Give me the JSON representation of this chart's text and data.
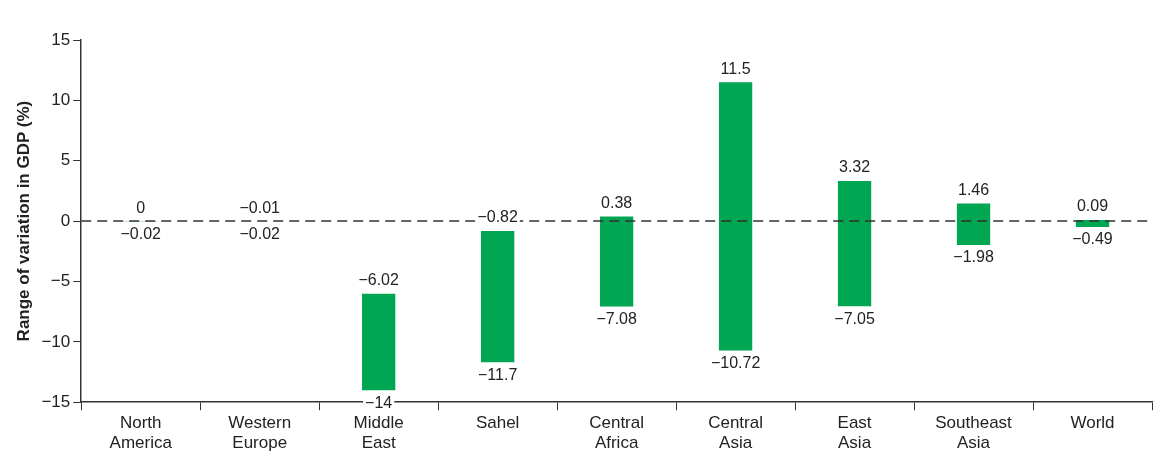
{
  "chart_data": {
    "type": "bar",
    "ylabel": "Range of variation in GDP (%)",
    "categories": [
      "North\nAmerica",
      "Western\nEurope",
      "Middle\nEast",
      "Sahel",
      "Central\nAfrica",
      "Central\nAsia",
      "East\nAsia",
      "Southeast\nAsia",
      "World"
    ],
    "base": [
      -0.02,
      -0.02,
      -14,
      -11.7,
      -7.08,
      -10.72,
      -7.05,
      -1.98,
      -0.49
    ],
    "values": [
      0.02,
      0.01,
      7.98,
      10.88,
      7.46,
      22.22,
      10.37,
      3.44,
      0.58
    ],
    "color": "#00a651",
    "ylim": [
      -15,
      15
    ],
    "yticks": [
      {
        "value": -15,
        "label": "−15"
      },
      {
        "value": -10,
        "label": "−10"
      },
      {
        "value": -5,
        "label": "−5"
      },
      0,
      5,
      10,
      15
    ],
    "grid": false,
    "legend": false,
    "ref_lines": [
      {
        "axis": "y",
        "value": 0,
        "color": "#333333",
        "line_style": "dashed"
      }
    ],
    "annotations": [
      {
        "text": "0",
        "x": "North\nAmerica",
        "y": 0
      },
      {
        "text": "−0.02",
        "x": "North\nAmerica",
        "y": -0.02
      },
      {
        "text": "−0.01",
        "x": "Western\nEurope",
        "y": -0.01
      },
      {
        "text": "−0.02",
        "x": "Western\nEurope",
        "y": -0.02
      },
      {
        "text": "−6.02",
        "x": "Middle\nEast",
        "y": -6.02
      },
      {
        "text": "−14",
        "x": "Middle\nEast",
        "y": -14
      },
      {
        "text": "−0.82",
        "x": "Sahel",
        "y": -0.82
      },
      {
        "text": "−11.7",
        "x": "Sahel",
        "y": -11.7
      },
      {
        "text": "0.38",
        "x": "Central\nAfrica",
        "y": 0.38
      },
      {
        "text": "−7.08",
        "x": "Central\nAfrica",
        "y": -7.08
      },
      {
        "text": "11.5",
        "x": "Central\nAsia",
        "y": 11.5
      },
      {
        "text": "−10.72",
        "x": "Central\nAsia",
        "y": -10.72
      },
      {
        "text": "3.32",
        "x": "East\nAsia",
        "y": 3.32
      },
      {
        "text": "−7.05",
        "x": "East\nAsia",
        "y": -7.05
      },
      {
        "text": "1.46",
        "x": "Southeast\nAsia",
        "y": 1.46
      },
      {
        "text": "−1.98",
        "x": "Southeast\nAsia",
        "y": -1.98
      },
      {
        "text": "0.09",
        "x": "World",
        "y": 0.09
      },
      {
        "text": "−0.49",
        "x": "World",
        "y": -0.49
      }
    ]
  }
}
